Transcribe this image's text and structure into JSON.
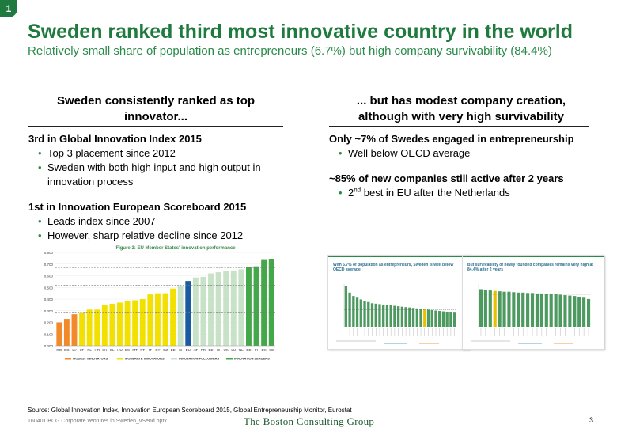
{
  "slide": {
    "number_badge": "1",
    "title": "Sweden ranked third most innovative country in the world",
    "subtitle": "Relatively small share of population as entrepreneurs (6.7%) but high company survivability (84.4%)"
  },
  "left": {
    "heading": "Sweden consistently ranked as top innovator...",
    "blocks": [
      {
        "head": "3rd in Global Innovation Index 2015",
        "bullets": [
          "Top 3 placement since 2012",
          "Sweden with both high input and high output in innovation process"
        ]
      },
      {
        "head": "1st in Innovation European Scoreboard 2015",
        "bullets": [
          "Leads index since 2007",
          "However, sharp relative decline since 2012"
        ]
      }
    ]
  },
  "right": {
    "heading": "... but has modest company creation, although with very high survivability",
    "blocks": [
      {
        "head": "Only ~7% of Swedes engaged in entrepreneurship",
        "bullets": [
          "Well below OECD average"
        ]
      },
      {
        "head": "~85% of new companies still active after 2 years",
        "bullets": [
          {
            "pre": "2",
            "sup": "nd",
            "post": " best in EU after the Netherlands"
          }
        ]
      }
    ]
  },
  "chart_data": {
    "type": "bar",
    "title": "Figure 3: EU Member States' innovation performance",
    "categories": [
      "RO",
      "BG",
      "LV",
      "LT",
      "PL",
      "HR",
      "SK",
      "EL",
      "HU",
      "ES",
      "MT",
      "PT",
      "IT",
      "CY",
      "CZ",
      "EE",
      "SI",
      "EU",
      "AT",
      "FR",
      "BE",
      "IE",
      "UK",
      "LU",
      "NL",
      "DE",
      "FI",
      "DK",
      "SE"
    ],
    "values": [
      0.2,
      0.23,
      0.27,
      0.28,
      0.31,
      0.31,
      0.35,
      0.36,
      0.37,
      0.38,
      0.39,
      0.4,
      0.44,
      0.45,
      0.45,
      0.49,
      0.51,
      0.555,
      0.585,
      0.59,
      0.62,
      0.63,
      0.64,
      0.645,
      0.655,
      0.675,
      0.68,
      0.735,
      0.74
    ],
    "groups": [
      "modest",
      "modest",
      "modest",
      "moderate",
      "moderate",
      "moderate",
      "moderate",
      "moderate",
      "moderate",
      "moderate",
      "moderate",
      "moderate",
      "moderate",
      "moderate",
      "moderate",
      "moderate",
      "follower",
      "eu",
      "follower",
      "follower",
      "follower",
      "follower",
      "follower",
      "follower",
      "follower",
      "leader",
      "leader",
      "leader",
      "leader"
    ],
    "group_colors": {
      "modest": "#f28a2c",
      "moderate": "#f2e000",
      "follower": "#c8e2c8",
      "eu": "#1a5aa0",
      "leader": "#44a84a"
    },
    "legend": [
      {
        "group": "modest",
        "label": "MODEST INNOVATORS"
      },
      {
        "group": "moderate",
        "label": "MODERATE INNOVATORS"
      },
      {
        "group": "follower",
        "label": "INNOVATION FOLLOWERS"
      },
      {
        "group": "leader",
        "label": "INNOVATION LEADERS"
      }
    ],
    "yticks": [
      "0.000",
      "0.100",
      "0.200",
      "0.300",
      "0.400",
      "0.500",
      "0.600",
      "0.700",
      "0.800"
    ],
    "ylim": [
      0,
      0.8
    ],
    "thresholds": [
      0.28,
      0.52,
      0.67
    ]
  },
  "thumbnails": [
    {
      "title": "With 6.7% of population as entrepreneurs, Sweden is well below OECD average",
      "values": [
        95,
        80,
        72,
        68,
        64,
        60,
        58,
        55,
        54,
        53,
        52,
        51,
        50,
        49,
        48,
        47,
        46,
        45,
        44,
        43,
        42,
        41,
        40,
        39,
        38,
        37,
        36,
        35,
        34,
        33
      ],
      "highlight": 21,
      "ref": 40,
      "bar_color": "#4d9a60",
      "hl_color": "#e8c000"
    },
    {
      "title": "But survivability of newly founded companies remains very high at 84.4% after 2 years",
      "values": [
        88,
        86,
        85,
        84,
        83,
        82,
        82,
        81,
        80,
        80,
        79,
        79,
        78,
        78,
        77,
        77,
        76,
        75,
        74,
        73,
        72,
        70,
        68,
        65
      ],
      "highlight": 3,
      "ref": 76,
      "bar_color": "#4d9a60",
      "hl_color": "#e8c000"
    }
  ],
  "footer": {
    "source": "Source: Global Innovation Index, Innovation European Scoreboard 2015, Global Entrepreneurship Monitor, Eurostat",
    "file": "160401 BCG Corporate ventures in Sweden_vSend.pptx",
    "logo_the": "The ",
    "logo_boston": "Boston ",
    "logo_consulting": "Consulting ",
    "logo_group": "Group",
    "page": "3"
  }
}
